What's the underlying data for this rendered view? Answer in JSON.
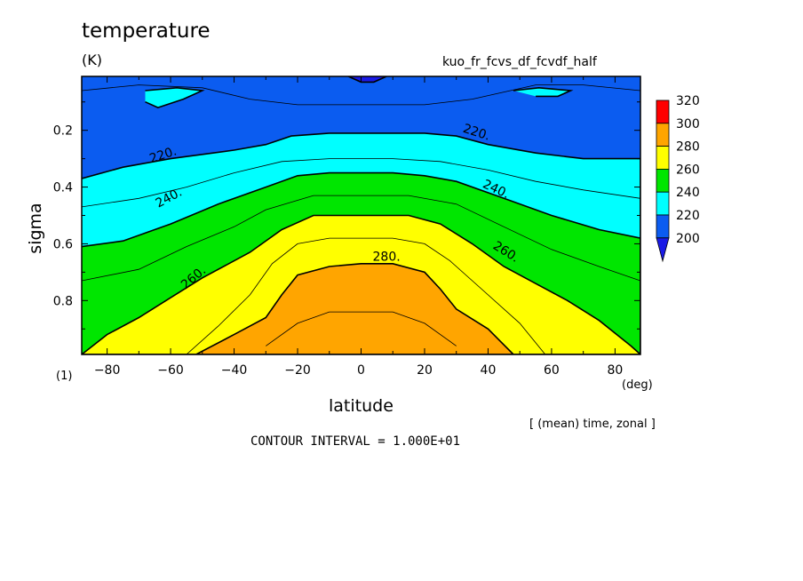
{
  "chart_data": {
    "type": "heatmap",
    "title": "temperature",
    "units": "(K)",
    "run_name": "kuo_fr_fcvs_df_fcvdf_half",
    "xlabel": "latitude",
    "x_unit": "(deg)",
    "ylabel": "sigma",
    "y_unit": "(1)",
    "averaging_note": "[ (mean) time, zonal ]",
    "contour_interval_note": "CONTOUR INTERVAL = 1.000E+01",
    "xlim": [
      -88,
      88
    ],
    "ylim": [
      0.01,
      0.99
    ],
    "y_inverted": true,
    "x_ticks": [
      -80,
      -60,
      -40,
      -20,
      0,
      20,
      40,
      60,
      80
    ],
    "x_tick_labels": [
      "−80",
      "−60",
      "−40",
      "−20",
      "0",
      "20",
      "40",
      "60",
      "80"
    ],
    "y_ticks": [
      0.2,
      0.4,
      0.6,
      0.8
    ],
    "y_tick_labels": [
      "0.2",
      "0.4",
      "0.6",
      "0.8"
    ],
    "levels": [
      200,
      220,
      240,
      260,
      280,
      300,
      320
    ],
    "colorbar_labels": [
      "200",
      "220",
      "240",
      "260",
      "280",
      "300",
      "320"
    ],
    "band_colors": [
      "#1a1ae6",
      "#0b5cf0",
      "#00ffff",
      "#00e600",
      "#ffff00",
      "#ffa500",
      "#ff8c00",
      "#ff0000"
    ],
    "contour_labels": [
      "220.",
      "220.",
      "240.",
      "240.",
      "260.",
      "260.",
      "280."
    ],
    "bands": [
      {
        "level": 220,
        "color": "#0b5cf0",
        "boundary": [
          [
            -88,
            0.01
          ],
          [
            88,
            0.01
          ],
          [
            88,
            0.99
          ],
          [
            -88,
            0.99
          ]
        ]
      },
      {
        "level": 220,
        "color": "#00ffff",
        "boundary": [
          [
            -88,
            0.37
          ],
          [
            -75,
            0.33
          ],
          [
            -60,
            0.3
          ],
          [
            -40,
            0.27
          ],
          [
            -30,
            0.25
          ],
          [
            -22,
            0.22
          ],
          [
            -10,
            0.21
          ],
          [
            0,
            0.21
          ],
          [
            10,
            0.21
          ],
          [
            20,
            0.21
          ],
          [
            30,
            0.22
          ],
          [
            40,
            0.25
          ],
          [
            55,
            0.28
          ],
          [
            70,
            0.3
          ],
          [
            88,
            0.3
          ],
          [
            88,
            0.99
          ],
          [
            -88,
            0.99
          ]
        ]
      },
      {
        "level": 240,
        "color": "#00e600",
        "boundary": [
          [
            -88,
            0.61
          ],
          [
            -75,
            0.59
          ],
          [
            -60,
            0.53
          ],
          [
            -45,
            0.46
          ],
          [
            -30,
            0.4
          ],
          [
            -20,
            0.36
          ],
          [
            -10,
            0.35
          ],
          [
            0,
            0.35
          ],
          [
            10,
            0.35
          ],
          [
            20,
            0.36
          ],
          [
            30,
            0.38
          ],
          [
            45,
            0.44
          ],
          [
            60,
            0.5
          ],
          [
            75,
            0.55
          ],
          [
            88,
            0.58
          ],
          [
            88,
            0.99
          ],
          [
            -88,
            0.99
          ]
        ]
      },
      {
        "level": 260,
        "color": "#ffff00",
        "boundary": [
          [
            -88,
            0.99
          ],
          [
            -80,
            0.92
          ],
          [
            -70,
            0.86
          ],
          [
            -60,
            0.79
          ],
          [
            -50,
            0.72
          ],
          [
            -35,
            0.63
          ],
          [
            -25,
            0.55
          ],
          [
            -15,
            0.5
          ],
          [
            0,
            0.5
          ],
          [
            15,
            0.5
          ],
          [
            25,
            0.53
          ],
          [
            35,
            0.6
          ],
          [
            45,
            0.68
          ],
          [
            55,
            0.74
          ],
          [
            65,
            0.8
          ],
          [
            75,
            0.87
          ],
          [
            85,
            0.96
          ],
          [
            88,
            0.99
          ]
        ]
      },
      {
        "level": 280,
        "color": "#ffa500",
        "boundary": [
          [
            -52,
            0.99
          ],
          [
            -40,
            0.92
          ],
          [
            -30,
            0.86
          ],
          [
            -25,
            0.78
          ],
          [
            -20,
            0.71
          ],
          [
            -10,
            0.68
          ],
          [
            0,
            0.67
          ],
          [
            10,
            0.67
          ],
          [
            20,
            0.7
          ],
          [
            25,
            0.76
          ],
          [
            30,
            0.83
          ],
          [
            40,
            0.9
          ],
          [
            48,
            0.99
          ]
        ]
      },
      {
        "level": 200,
        "color": "#1a1ae6",
        "boundary": [
          [
            -4,
            0.01
          ],
          [
            0,
            0.03
          ],
          [
            4,
            0.03
          ],
          [
            8,
            0.01
          ]
        ]
      },
      {
        "level": 220,
        "color": "#00ffff",
        "boundary": [
          [
            -68,
            0.06
          ],
          [
            -58,
            0.05
          ],
          [
            -50,
            0.06
          ],
          [
            -56,
            0.09
          ],
          [
            -64,
            0.12
          ],
          [
            -68,
            0.1
          ]
        ]
      },
      {
        "level": 220,
        "color": "#00ffff",
        "boundary": [
          [
            48,
            0.06
          ],
          [
            56,
            0.05
          ],
          [
            66,
            0.06
          ],
          [
            62,
            0.08
          ],
          [
            55,
            0.08
          ]
        ]
      }
    ],
    "contours": [
      {
        "level": 210,
        "path": [
          [
            -88,
            0.06
          ],
          [
            -70,
            0.04
          ],
          [
            -50,
            0.05
          ],
          [
            -35,
            0.09
          ],
          [
            -20,
            0.11
          ],
          [
            0,
            0.11
          ],
          [
            20,
            0.11
          ],
          [
            35,
            0.09
          ],
          [
            55,
            0.04
          ],
          [
            70,
            0.04
          ],
          [
            88,
            0.06
          ]
        ]
      },
      {
        "level": 230,
        "path": [
          [
            -88,
            0.47
          ],
          [
            -70,
            0.44
          ],
          [
            -55,
            0.4
          ],
          [
            -40,
            0.35
          ],
          [
            -25,
            0.31
          ],
          [
            -10,
            0.3
          ],
          [
            10,
            0.3
          ],
          [
            25,
            0.31
          ],
          [
            40,
            0.34
          ],
          [
            55,
            0.38
          ],
          [
            70,
            0.41
          ],
          [
            88,
            0.44
          ]
        ]
      },
      {
        "level": 250,
        "path": [
          [
            -88,
            0.73
          ],
          [
            -70,
            0.69
          ],
          [
            -55,
            0.61
          ],
          [
            -40,
            0.54
          ],
          [
            -30,
            0.48
          ],
          [
            -15,
            0.43
          ],
          [
            0,
            0.43
          ],
          [
            15,
            0.43
          ],
          [
            30,
            0.46
          ],
          [
            45,
            0.54
          ],
          [
            60,
            0.62
          ],
          [
            75,
            0.68
          ],
          [
            88,
            0.73
          ]
        ]
      },
      {
        "level": 270,
        "path": [
          [
            -55,
            0.99
          ],
          [
            -45,
            0.89
          ],
          [
            -35,
            0.78
          ],
          [
            -28,
            0.67
          ],
          [
            -20,
            0.6
          ],
          [
            -10,
            0.58
          ],
          [
            10,
            0.58
          ],
          [
            20,
            0.6
          ],
          [
            28,
            0.66
          ],
          [
            38,
            0.76
          ],
          [
            50,
            0.88
          ],
          [
            58,
            0.99
          ]
        ]
      },
      {
        "level": 290,
        "path": [
          [
            -30,
            0.96
          ],
          [
            -20,
            0.88
          ],
          [
            -10,
            0.84
          ],
          [
            10,
            0.84
          ],
          [
            20,
            0.88
          ],
          [
            30,
            0.96
          ]
        ]
      }
    ]
  }
}
